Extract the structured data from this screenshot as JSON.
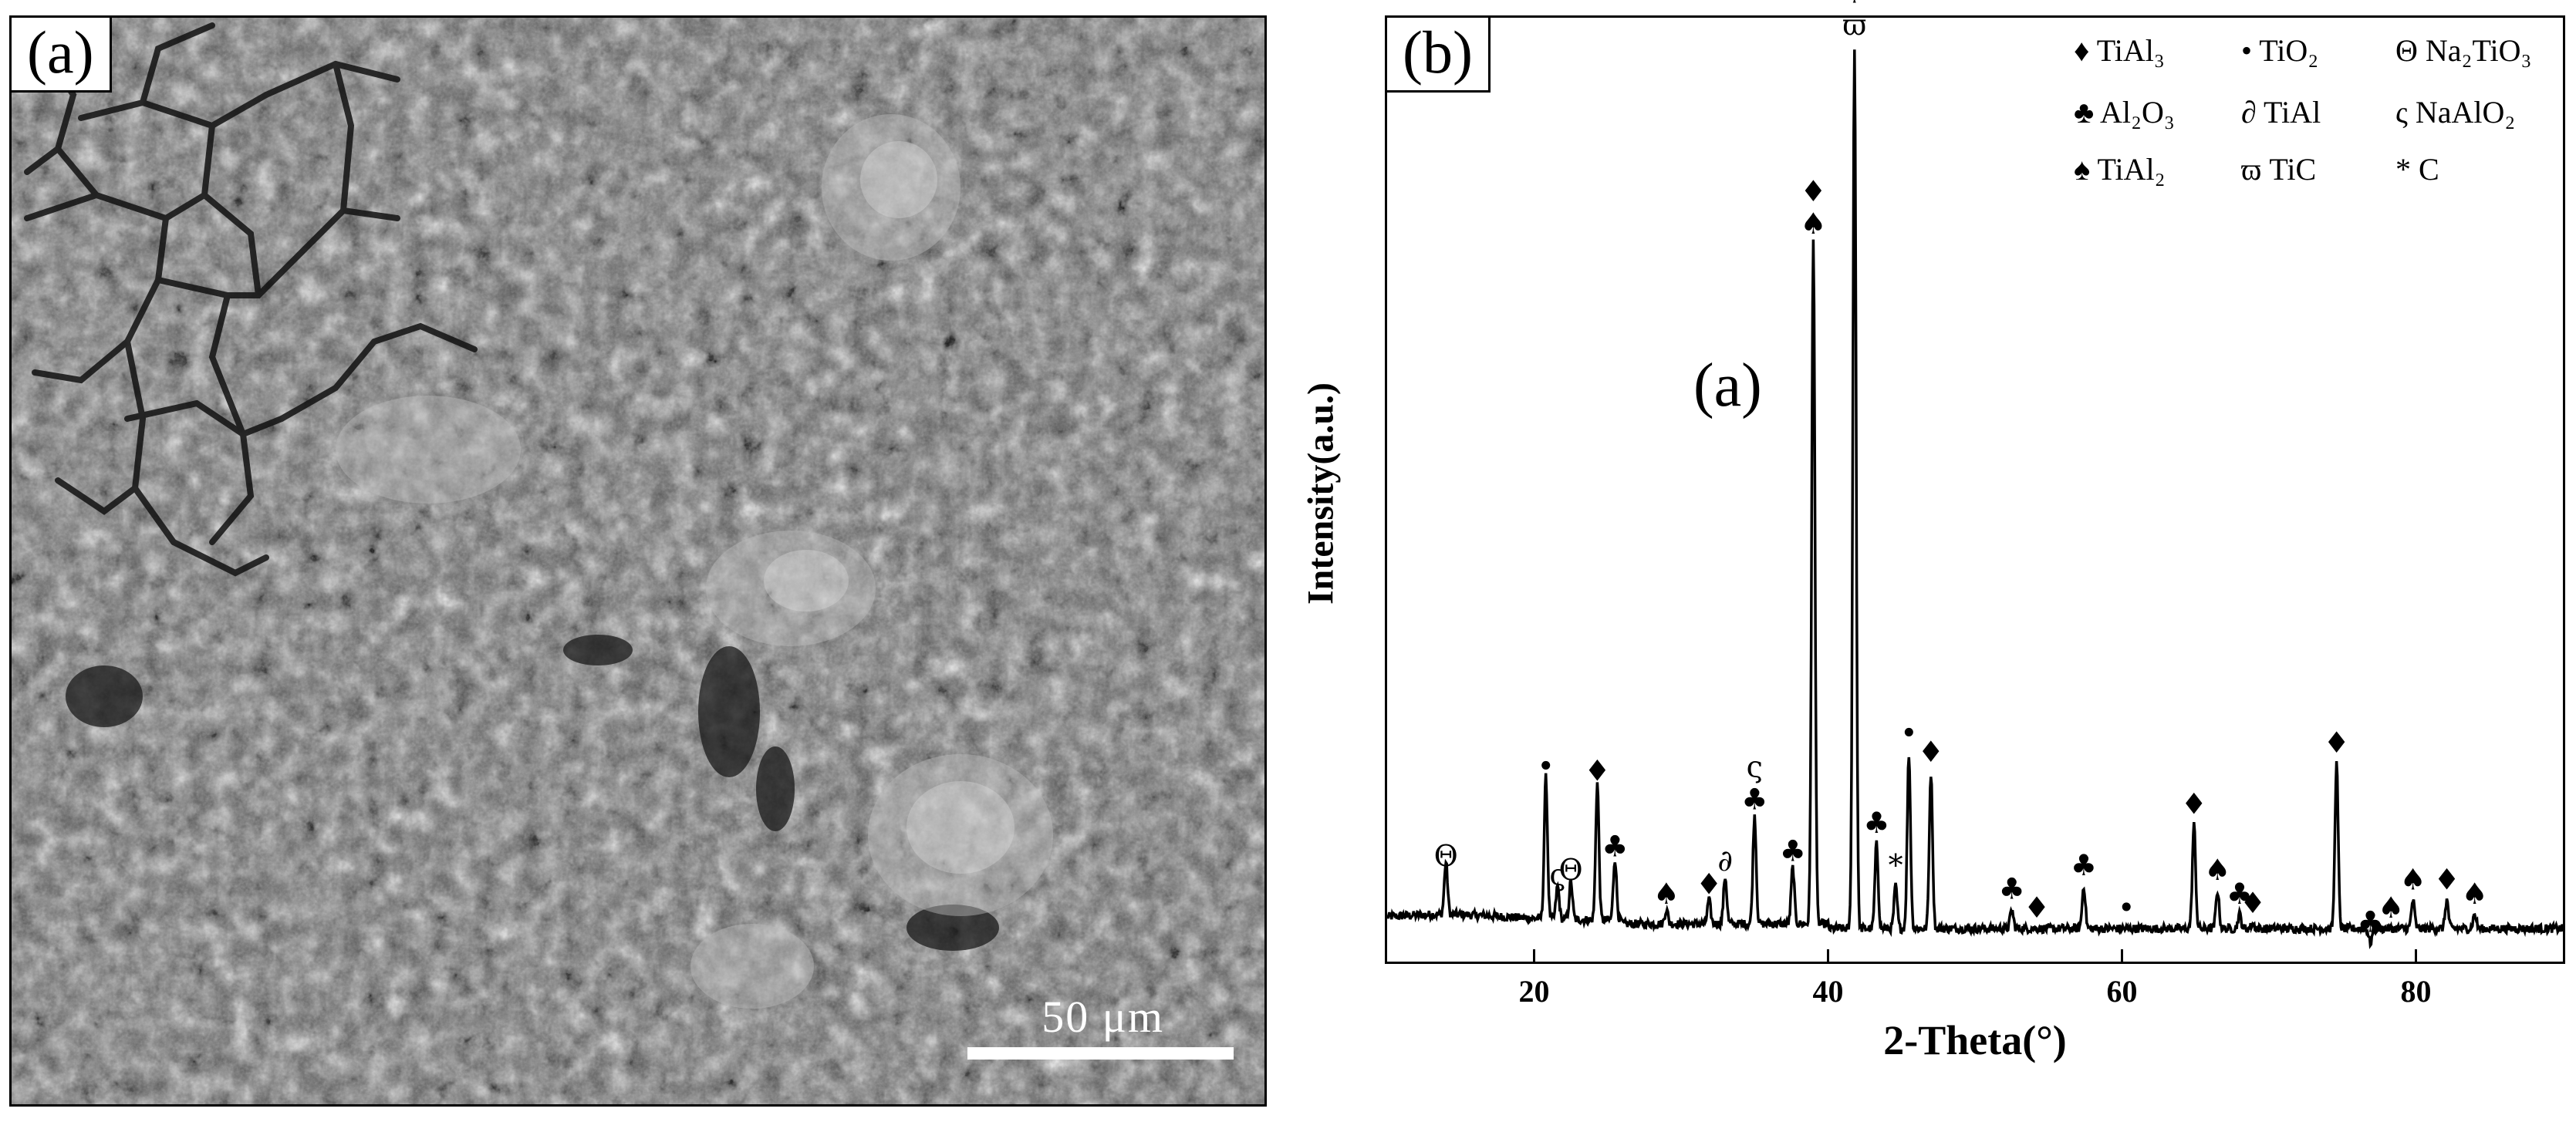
{
  "panels": {
    "sem_label": "(a)",
    "xrd_label": "(b)",
    "scale_bar_text": "50 μm",
    "inner_label": "(a)"
  },
  "chart_data": {
    "type": "line",
    "xlabel": "2-Theta(°)",
    "ylabel": "Intensity(a.u.)",
    "xlim": [
      10,
      90
    ],
    "ylim": [
      0,
      100
    ],
    "xticks": [
      20,
      40,
      60,
      80
    ],
    "grid": false,
    "legend_position": "top-right",
    "legend": [
      {
        "symbol": "♦",
        "label": "TiAl₃"
      },
      {
        "symbol": "•",
        "label": "TiO₂"
      },
      {
        "symbol": "Θ",
        "label": "Na₂TiO₃"
      },
      {
        "symbol": "♣",
        "label": "Al₂O₃"
      },
      {
        "symbol": "∂",
        "label": "TiAl"
      },
      {
        "symbol": "ς",
        "label": "NaAlO₂"
      },
      {
        "symbol": "♠",
        "label": "TiAl₂"
      },
      {
        "symbol": "ϖ",
        "label": "TiC"
      },
      {
        "symbol": "*",
        "label": "C"
      }
    ],
    "baseline_y": 3.5,
    "peaks": [
      {
        "x": 14.0,
        "y": 9.0,
        "markers": [
          "Θ"
        ]
      },
      {
        "x": 20.8,
        "y": 18.5,
        "markers": [
          "•"
        ]
      },
      {
        "x": 21.6,
        "y": 7.0,
        "markers": [
          "ς"
        ]
      },
      {
        "x": 22.5,
        "y": 7.5,
        "markers": [
          "Θ"
        ]
      },
      {
        "x": 24.3,
        "y": 18.0,
        "markers": [
          "♦"
        ]
      },
      {
        "x": 25.5,
        "y": 10.0,
        "markers": [
          "♣"
        ]
      },
      {
        "x": 29.0,
        "y": 5.0,
        "markers": [
          "♠"
        ]
      },
      {
        "x": 31.9,
        "y": 6.0,
        "markers": [
          "♦"
        ]
      },
      {
        "x": 33.0,
        "y": 8.5,
        "markers": [
          "∂"
        ]
      },
      {
        "x": 35.0,
        "y": 15.0,
        "markers": [
          "♣",
          "ς"
        ]
      },
      {
        "x": 37.6,
        "y": 9.5,
        "markers": [
          "♣"
        ]
      },
      {
        "x": 39.0,
        "y": 76.0,
        "markers": [
          "♠",
          "♦"
        ]
      },
      {
        "x": 41.8,
        "y": 97.0,
        "markers": [
          "ϖ",
          "♣"
        ]
      },
      {
        "x": 43.3,
        "y": 12.5,
        "markers": [
          "♣"
        ]
      },
      {
        "x": 44.6,
        "y": 8.0,
        "markers": [
          "*"
        ]
      },
      {
        "x": 45.5,
        "y": 22.0,
        "markers": [
          "•"
        ]
      },
      {
        "x": 47.0,
        "y": 20.0,
        "markers": [
          "♦"
        ]
      },
      {
        "x": 52.5,
        "y": 5.5,
        "markers": [
          "♣"
        ]
      },
      {
        "x": 54.2,
        "y": 3.5,
        "markers": [
          "♦"
        ]
      },
      {
        "x": 57.4,
        "y": 8.0,
        "markers": [
          "♣"
        ]
      },
      {
        "x": 60.3,
        "y": 3.5,
        "markers": [
          "•"
        ]
      },
      {
        "x": 64.9,
        "y": 14.5,
        "markers": [
          "♦"
        ]
      },
      {
        "x": 66.5,
        "y": 7.5,
        "markers": [
          "♠"
        ]
      },
      {
        "x": 68.0,
        "y": 5.0,
        "markers": [
          "♣"
        ]
      },
      {
        "x": 68.9,
        "y": 4.0,
        "markers": [
          "♦"
        ]
      },
      {
        "x": 74.6,
        "y": 21.0,
        "markers": [
          "♦"
        ]
      },
      {
        "x": 76.9,
        "y": 2.0,
        "markers": [
          "♣"
        ]
      },
      {
        "x": 78.3,
        "y": 3.5,
        "markers": [
          "♠"
        ]
      },
      {
        "x": 79.8,
        "y": 6.5,
        "markers": [
          "♠"
        ]
      },
      {
        "x": 82.1,
        "y": 6.5,
        "markers": [
          "♦"
        ]
      },
      {
        "x": 84.0,
        "y": 5.0,
        "markers": [
          "♠"
        ]
      }
    ]
  }
}
